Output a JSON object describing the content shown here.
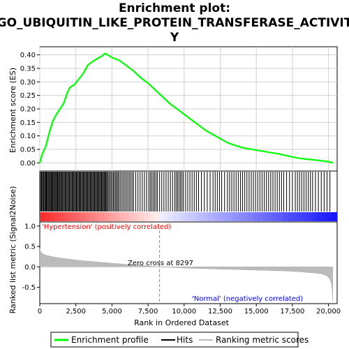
{
  "chart_data": {
    "type": "line",
    "title_lines": [
      "Enrichment plot:",
      "GO_UBIQUITIN_LIKE_PROTEIN_TRANSFERASE_ACTIVIT",
      "Y"
    ],
    "top_panel": {
      "ylabel": "Enrichment score (ES)",
      "ylim": [
        -0.03,
        0.43
      ],
      "yticks": [
        0.0,
        0.05,
        0.1,
        0.15,
        0.2,
        0.25,
        0.3,
        0.35,
        0.4
      ],
      "ytick_labels": [
        "0.00",
        "0.05",
        "0.10",
        "0.15",
        "0.20",
        "0.25",
        "0.30",
        "0.35",
        "0.40"
      ],
      "grid": true,
      "series": [
        {
          "name": "Enrichment profile",
          "color": "#00ff00",
          "x": [
            0,
            150,
            400,
            650,
            900,
            1150,
            1400,
            1650,
            1900,
            2100,
            2400,
            2700,
            3000,
            3300,
            3500,
            3800,
            4100,
            4300,
            4500,
            4700,
            5000,
            5500,
            6000,
            6500,
            7000,
            7500,
            8000,
            8500,
            9000,
            9500,
            10000,
            10500,
            11000,
            11500,
            12000,
            12500,
            13000,
            13500,
            14000,
            14500,
            15000,
            15500,
            16000,
            16500,
            17000,
            17500,
            18000,
            18500,
            19000,
            19500,
            20000,
            20300
          ],
          "y": [
            0.0,
            0.03,
            0.06,
            0.11,
            0.155,
            0.18,
            0.2,
            0.22,
            0.26,
            0.28,
            0.29,
            0.31,
            0.33,
            0.36,
            0.37,
            0.38,
            0.39,
            0.395,
            0.405,
            0.4,
            0.39,
            0.38,
            0.36,
            0.34,
            0.315,
            0.295,
            0.27,
            0.245,
            0.22,
            0.2,
            0.18,
            0.16,
            0.14,
            0.12,
            0.105,
            0.09,
            0.075,
            0.065,
            0.057,
            0.052,
            0.047,
            0.043,
            0.038,
            0.034,
            0.028,
            0.022,
            0.017,
            0.014,
            0.011,
            0.008,
            0.005,
            0.0
          ]
        }
      ]
    },
    "hits_panel": {
      "hit_positions": [
        60,
        120,
        180,
        240,
        290,
        350,
        410,
        460,
        520,
        570,
        630,
        680,
        740,
        790,
        850,
        900,
        960,
        1010,
        1070,
        1120,
        1180,
        1230,
        1290,
        1350,
        1400,
        1460,
        1520,
        1580,
        1640,
        1700,
        1760,
        1820,
        1880,
        1940,
        2000,
        2060,
        2120,
        2180,
        2240,
        2300,
        2360,
        2420,
        2480,
        2540,
        2600,
        2660,
        2720,
        2780,
        2840,
        2900,
        2960,
        3020,
        3080,
        3140,
        3200,
        3260,
        3320,
        3380,
        3440,
        3500,
        3560,
        3620,
        3680,
        3740,
        3800,
        3860,
        3920,
        3980,
        4040,
        4100,
        4160,
        4220,
        4280,
        4340,
        4400,
        4460,
        4520,
        4580,
        4640,
        4700,
        4780,
        4860,
        4940,
        5020,
        5100,
        5180,
        5260,
        5340,
        5420,
        5500,
        5600,
        5700,
        5800,
        5900,
        6000,
        6100,
        6200,
        6300,
        6400,
        6500,
        6650,
        6800,
        6950,
        7100,
        7250,
        7400,
        7550,
        7650,
        7750,
        7850,
        7950,
        8050,
        8150,
        8300,
        8450,
        8600,
        8750,
        8900,
        9050,
        9200,
        9350,
        9450,
        9550,
        9650,
        9750,
        9850,
        9950,
        10100,
        10250,
        10400,
        10550,
        10700,
        10850,
        11000,
        11200,
        11400,
        11600,
        11800,
        12000,
        12150,
        12300,
        12450,
        12600,
        12800,
        13000,
        13150,
        13300,
        13450,
        13600,
        13750,
        13900,
        14050,
        14200,
        14350,
        14500,
        14650,
        14800,
        14950,
        15100,
        15250,
        15400,
        15550,
        15700,
        15850,
        16000,
        16150,
        16300,
        16450,
        16600,
        16750,
        16900,
        17100,
        17300,
        17500,
        17700,
        17850,
        18000,
        18150,
        18300,
        18450,
        18600,
        18750,
        18900,
        19100,
        19300,
        19500,
        19700,
        19900,
        20100
      ]
    },
    "metric_panel": {
      "ylabel": "Ranked list metric (Signal2Noise)",
      "ylim": [
        -0.9,
        1.1
      ],
      "yticks": [
        -0.5,
        0.0,
        0.5,
        1.0
      ],
      "ytick_labels": [
        "-0.5",
        "0.0",
        "0.5",
        "1.0"
      ],
      "x": [
        0,
        50,
        200,
        500,
        1000,
        2000,
        3000,
        4000,
        5000,
        6000,
        7000,
        8000,
        8297,
        9000,
        10000,
        12000,
        14000,
        16000,
        17000,
        18000,
        19000,
        19500,
        19900,
        20100,
        20200,
        20260,
        20300
      ],
      "y": [
        0.45,
        0.38,
        0.32,
        0.28,
        0.24,
        0.19,
        0.15,
        0.12,
        0.09,
        0.06,
        0.04,
        0.01,
        0.0,
        -0.01,
        -0.03,
        -0.05,
        -0.07,
        -0.09,
        -0.1,
        -0.12,
        -0.15,
        -0.17,
        -0.22,
        -0.3,
        -0.4,
        -0.6,
        -0.85
      ],
      "zero_cross_label": "Zero cross at 8297",
      "zero_cross": 8297,
      "positive_label": "'Hypertension' (positively correlated)",
      "negative_label": "'Normal' (negatively correlated)",
      "positive_color": "#ff0000",
      "negative_color": "#0000ff"
    },
    "xlabel": "Rank in Ordered Dataset",
    "xlim": [
      0,
      20600
    ],
    "xticks": [
      0,
      2500,
      5000,
      7500,
      10000,
      12500,
      15000,
      17500,
      20000
    ],
    "xtick_labels": [
      "0",
      "2,500",
      "5,000",
      "7,500",
      "10,000",
      "12,500",
      "15,000",
      "17,500",
      "20,000"
    ],
    "legend": {
      "placement": "bottom",
      "entries": [
        {
          "label": "Enrichment profile",
          "color": "#00ff00"
        },
        {
          "label": "Hits",
          "color": "#000000"
        },
        {
          "label": "Ranking metric scores",
          "color": "#bbbbbb"
        }
      ]
    }
  }
}
